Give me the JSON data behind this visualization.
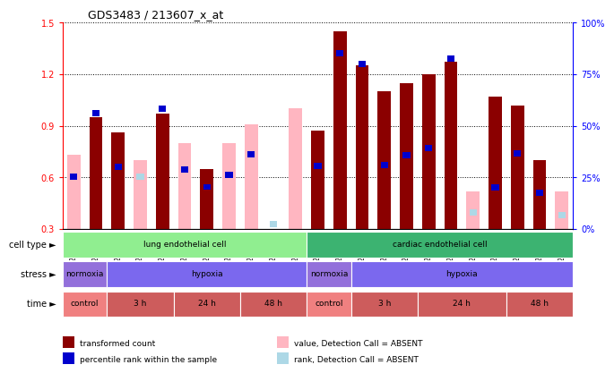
{
  "title": "GDS3483 / 213607_x_at",
  "samples": [
    "GSM286407",
    "GSM286410",
    "GSM286414",
    "GSM286411",
    "GSM286415",
    "GSM286408",
    "GSM286412",
    "GSM286416",
    "GSM286409",
    "GSM286413",
    "GSM286417",
    "GSM286418",
    "GSM286422",
    "GSM286426",
    "GSM286419",
    "GSM286423",
    "GSM286427",
    "GSM286420",
    "GSM286424",
    "GSM286428",
    "GSM286421",
    "GSM286425",
    "GSM286429"
  ],
  "transformed_count": [
    null,
    0.95,
    0.86,
    null,
    0.97,
    null,
    0.65,
    null,
    null,
    null,
    null,
    0.87,
    1.45,
    1.25,
    1.1,
    1.15,
    1.2,
    1.27,
    null,
    1.07,
    1.02,
    0.7,
    null
  ],
  "value_absent": [
    0.73,
    null,
    null,
    0.7,
    null,
    0.8,
    null,
    0.8,
    0.91,
    null,
    1.0,
    null,
    null,
    null,
    null,
    null,
    null,
    null,
    0.52,
    null,
    null,
    null,
    0.52
  ],
  "percentile_rank": [
    0.605,
    0.975,
    0.66,
    null,
    1.0,
    0.645,
    0.545,
    0.615,
    0.735,
    null,
    null,
    0.665,
    1.32,
    1.26,
    0.67,
    0.73,
    0.77,
    1.29,
    null,
    0.54,
    0.74,
    0.51,
    null
  ],
  "rank_absent": [
    null,
    null,
    null,
    0.605,
    null,
    null,
    null,
    null,
    null,
    0.33,
    null,
    null,
    null,
    null,
    null,
    null,
    null,
    null,
    0.395,
    null,
    null,
    null,
    0.38
  ],
  "ylim": [
    0.3,
    1.5
  ],
  "yticks_left": [
    0.3,
    0.6,
    0.9,
    1.2,
    1.5
  ],
  "yticks_right": [
    0,
    25,
    50,
    75,
    100
  ],
  "bar_color_red": "#8B0000",
  "bar_color_pink": "#FFB6C1",
  "bar_color_blue": "#0000CD",
  "bar_color_lightblue": "#ADD8E6",
  "annotations": {
    "cell_type": [
      {
        "label": "lung endothelial cell",
        "start": 0,
        "end": 11,
        "color": "#90EE90"
      },
      {
        "label": "cardiac endothelial cell",
        "start": 11,
        "end": 23,
        "color": "#3CB371"
      }
    ],
    "stress": [
      {
        "label": "normoxia",
        "start": 0,
        "end": 2,
        "color": "#9370DB"
      },
      {
        "label": "hypoxia",
        "start": 2,
        "end": 11,
        "color": "#7B68EE"
      },
      {
        "label": "normoxia",
        "start": 11,
        "end": 13,
        "color": "#9370DB"
      },
      {
        "label": "hypoxia",
        "start": 13,
        "end": 23,
        "color": "#7B68EE"
      }
    ],
    "time": [
      {
        "label": "control",
        "start": 0,
        "end": 2,
        "color": "#F08080"
      },
      {
        "label": "3 h",
        "start": 2,
        "end": 5,
        "color": "#CD5C5C"
      },
      {
        "label": "24 h",
        "start": 5,
        "end": 8,
        "color": "#CD5C5C"
      },
      {
        "label": "48 h",
        "start": 8,
        "end": 11,
        "color": "#CD5C5C"
      },
      {
        "label": "control",
        "start": 11,
        "end": 13,
        "color": "#F08080"
      },
      {
        "label": "3 h",
        "start": 13,
        "end": 16,
        "color": "#CD5C5C"
      },
      {
        "label": "24 h",
        "start": 16,
        "end": 20,
        "color": "#CD5C5C"
      },
      {
        "label": "48 h",
        "start": 20,
        "end": 23,
        "color": "#CD5C5C"
      }
    ]
  },
  "row_labels": [
    "cell type ►",
    "stress ►",
    "time ►"
  ],
  "legend_items": [
    {
      "label": "transformed count",
      "color": "#8B0000"
    },
    {
      "label": "percentile rank within the sample",
      "color": "#0000CD"
    },
    {
      "label": "value, Detection Call = ABSENT",
      "color": "#FFB6C1"
    },
    {
      "label": "rank, Detection Call = ABSENT",
      "color": "#ADD8E6"
    }
  ]
}
